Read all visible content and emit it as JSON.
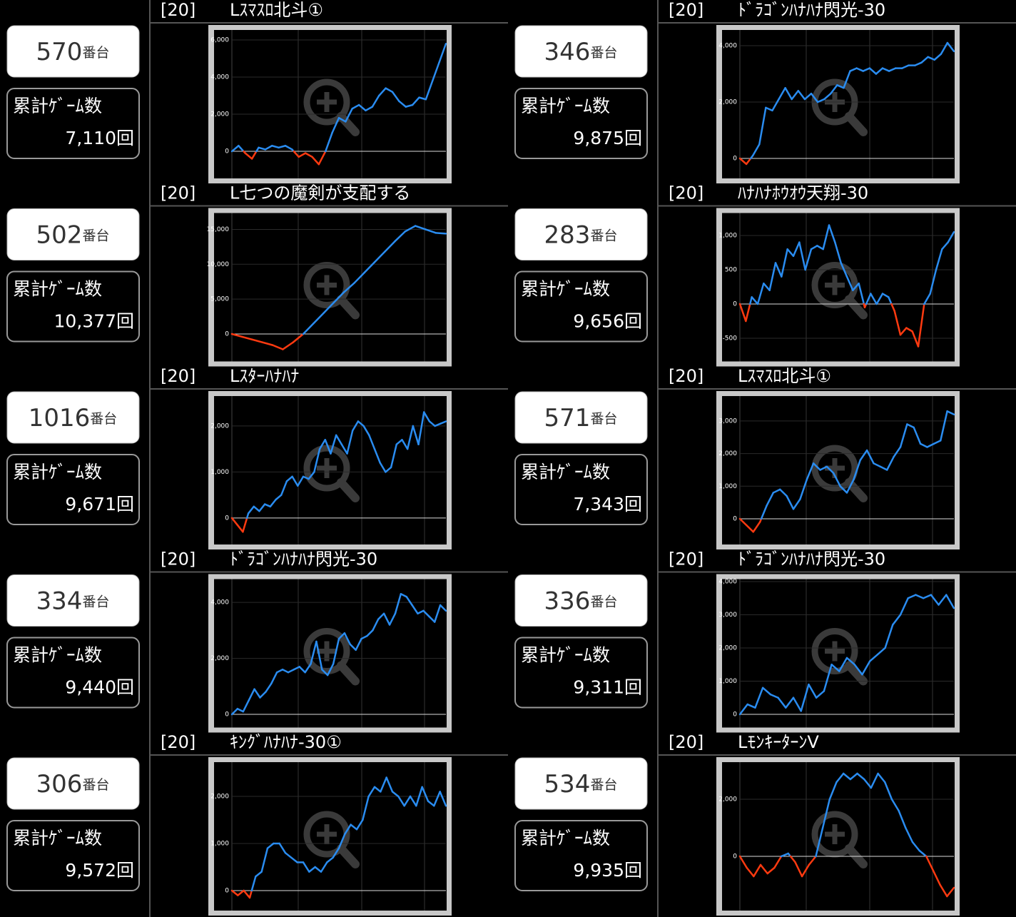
{
  "machines": [
    {
      "rate": "[20]",
      "name": "Lｽﾏｽﾛ北斗①",
      "number": 570,
      "unit": "番台",
      "games_label": "累計ｹﾞｰﾑ数",
      "games": "7,110回",
      "chart": {
        "type": "line",
        "ylim": [
          -1460,
          6540
        ],
        "yticks": [
          0,
          {
            "value": 2000,
            "label": "2,000"
          },
          {
            "value": 4000,
            "label": "4,000"
          },
          {
            "value": 6000,
            "label": "6,000"
          }
        ],
        "values": [
          0,
          300,
          -100,
          -400,
          200,
          100,
          300,
          200,
          300,
          100,
          -300,
          -100,
          -300,
          -700,
          0,
          1000,
          1800,
          1600,
          2300,
          2500,
          2200,
          2400,
          3000,
          3400,
          3200,
          2700,
          2400,
          2500,
          2900,
          2800,
          3800,
          4800,
          5800
        ]
      }
    },
    {
      "rate": "[20]",
      "name": "ﾄﾞﾗｺﾞﾝﾊﾅﾊﾅ閃光-30",
      "number": 346,
      "unit": "番台",
      "games_label": "累計ｹﾞｰﾑ数",
      "games": "9,875回",
      "chart": {
        "type": "line",
        "ylim": [
          -709,
          4557
        ],
        "yticks": [
          0,
          {
            "value": 2000,
            "label": "2,000"
          },
          {
            "value": 4000,
            "label": "4,000"
          }
        ],
        "values": [
          0,
          -200,
          100,
          500,
          1800,
          1700,
          2100,
          2500,
          2100,
          2400,
          2100,
          2300,
          2000,
          2100,
          2300,
          2600,
          2500,
          3100,
          3200,
          3100,
          3200,
          3000,
          3200,
          3100,
          3200,
          3200,
          3300,
          3300,
          3400,
          3600,
          3500,
          3700,
          4100,
          3800
        ]
      }
    },
    {
      "rate": "[20]",
      "name": "L七つの魔剣が支配する",
      "number": 502,
      "unit": "番台",
      "games_label": "累計ｹﾞｰﾑ数",
      "games": "10,377回",
      "chart": {
        "type": "line",
        "ylim": [
          -3940,
          17350
        ],
        "yticks": [
          0,
          {
            "value": 5000,
            "label": "5,000"
          },
          {
            "value": 10000,
            "label": "10,000"
          },
          {
            "value": 15000,
            "label": "15,000"
          }
        ],
        "values": [
          0,
          -400,
          -800,
          -1200,
          -1600,
          -2200,
          -1200,
          0,
          1500,
          3000,
          4500,
          6000,
          7300,
          8800,
          10300,
          11800,
          13300,
          14700,
          15500,
          15000,
          14500,
          14400
        ]
      }
    },
    {
      "rate": "[20]",
      "name": "ﾊﾅﾊﾅﾎｳｵｳ天翔-30",
      "number": 283,
      "unit": "番台",
      "games_label": "累計ｹﾞｰﾑ数",
      "games": "9,656回",
      "chart": {
        "type": "line",
        "ylim": [
          -839,
          1328
        ],
        "yticks": [
          -500,
          0,
          500,
          {
            "value": 1000,
            "label": "1,000"
          }
        ],
        "values": [
          0,
          -250,
          100,
          0,
          300,
          200,
          600,
          400,
          800,
          700,
          900,
          500,
          800,
          850,
          800,
          1150,
          900,
          600,
          400,
          200,
          300,
          -50,
          150,
          0,
          150,
          100,
          -100,
          -450,
          -350,
          -400,
          -620,
          0,
          150,
          500,
          800,
          900,
          1050
        ]
      }
    },
    {
      "rate": "[20]",
      "name": "Lｽﾀｰﾊﾅﾊﾅ",
      "number": 1016,
      "unit": "番台",
      "games_label": "累計ｹﾞｰﾑ数",
      "games": "9,671回",
      "chart": {
        "type": "line",
        "ylim": [
          -575,
          2650
        ],
        "yticks": [
          0,
          {
            "value": 1000,
            "label": "1,000"
          },
          {
            "value": 2000,
            "label": "2,000"
          }
        ],
        "values": [
          0,
          -150,
          -300,
          100,
          250,
          150,
          300,
          250,
          400,
          500,
          800,
          900,
          700,
          900,
          850,
          1000,
          1500,
          1700,
          1400,
          1800,
          1600,
          1400,
          1900,
          2100,
          2000,
          1800,
          1500,
          1200,
          1000,
          1100,
          1600,
          1700,
          1500,
          2000,
          1600,
          2300,
          2100,
          2000,
          2050,
          2100
        ]
      }
    },
    {
      "rate": "[20]",
      "name": "Lｽﾏｽﾛ北斗①",
      "number": 571,
      "unit": "番台",
      "games_label": "累計ｹﾞｰﾑ数",
      "games": "7,343回",
      "chart": {
        "type": "line",
        "ylim": [
          -788,
          3764
        ],
        "yticks": [
          0,
          {
            "value": 1000,
            "label": "1,000"
          },
          {
            "value": 2000,
            "label": "2,000"
          },
          {
            "value": 3000,
            "label": "3,000"
          }
        ],
        "values": [
          0,
          -200,
          -400,
          -100,
          400,
          800,
          900,
          700,
          300,
          600,
          1200,
          1700,
          1500,
          1600,
          1400,
          1000,
          800,
          1200,
          1800,
          2100,
          1700,
          1600,
          1500,
          1900,
          2200,
          2900,
          2800,
          2300,
          2200,
          2300,
          2400,
          3300,
          3200
        ]
      }
    },
    {
      "rate": "[20]",
      "name": "ﾄﾞﾗｺﾞﾝﾊﾅﾊﾅ閃光-30",
      "number": 334,
      "unit": "番台",
      "games_label": "累計ｹﾞｰﾑ数",
      "games": "9,440回",
      "chart": {
        "type": "line",
        "ylim": [
          -470,
          4830
        ],
        "yticks": [
          0,
          {
            "value": 2000,
            "label": "2,000"
          },
          {
            "value": 4000,
            "label": "4,000"
          }
        ],
        "values": [
          0,
          200,
          100,
          500,
          900,
          600,
          800,
          1100,
          1500,
          1600,
          1500,
          1600,
          1700,
          1500,
          1800,
          2600,
          1600,
          1400,
          1800,
          2700,
          2900,
          2500,
          2300,
          2700,
          2800,
          3000,
          3400,
          3600,
          3200,
          3600,
          4300,
          4200,
          3900,
          3600,
          3700,
          3500,
          3300,
          3900,
          3700
        ]
      }
    },
    {
      "rate": "[20]",
      "name": "ﾄﾞﾗｺﾞﾝﾊﾅﾊﾅ閃光-30",
      "number": 336,
      "unit": "番台",
      "games_label": "累計ｹﾞｰﾑ数",
      "games": "9,311回",
      "chart": {
        "type": "line",
        "ylim": [
          -398,
          4075
        ],
        "yticks": [
          0,
          {
            "value": 1000,
            "label": "1,000"
          },
          {
            "value": 2000,
            "label": "2,000"
          },
          {
            "value": 3000,
            "label": "3,000"
          },
          {
            "value": 4000,
            "label": "4,000"
          }
        ],
        "values": [
          0,
          300,
          200,
          800,
          600,
          500,
          200,
          500,
          100,
          900,
          500,
          700,
          1500,
          1300,
          1700,
          1500,
          1200,
          1600,
          1800,
          2000,
          2700,
          3000,
          3500,
          3600,
          3500,
          3600,
          3300,
          3600,
          3200
        ]
      }
    },
    {
      "rate": "[20]",
      "name": "ｷﾝｸﾞﾊﾅﾊﾅ-30①",
      "number": 306,
      "unit": "番台",
      "games_label": "累計ｹﾞｰﾑ数",
      "games": "9,572回",
      "chart": {
        "type": "line",
        "ylim": [
          -424,
          2727
        ],
        "yticks": [
          0,
          {
            "value": 1000,
            "label": "1,000"
          },
          {
            "value": 2000,
            "label": "2,000"
          }
        ],
        "values": [
          0,
          -100,
          0,
          -150,
          300,
          400,
          900,
          1000,
          1000,
          800,
          700,
          600,
          600,
          400,
          500,
          400,
          600,
          700,
          900,
          1200,
          1400,
          1300,
          1500,
          2000,
          2200,
          2100,
          2400,
          2100,
          2000,
          1800,
          2000,
          1800,
          2200,
          1900,
          1800,
          2100,
          1800
        ]
      }
    },
    {
      "rate": "[20]",
      "name": "LﾓﾝｷｰﾀｰﾝV",
      "number": 534,
      "unit": "番台",
      "games_label": "累計ｹﾞｰﾑ数",
      "games": "9,935回",
      "chart": {
        "type": "line",
        "ylim": [
          -1900,
          3300
        ],
        "yticks": [
          0,
          {
            "value": 2000,
            "label": "2,000"
          }
        ],
        "values": [
          0,
          -400,
          -700,
          -300,
          -600,
          -400,
          0,
          100,
          -200,
          -700,
          -300,
          0,
          1000,
          2000,
          2600,
          2900,
          2700,
          2900,
          2700,
          2400,
          2900,
          2600,
          2000,
          1600,
          1000,
          500,
          200,
          0,
          -500,
          -1000,
          -1400,
          -1100
        ]
      }
    }
  ]
}
